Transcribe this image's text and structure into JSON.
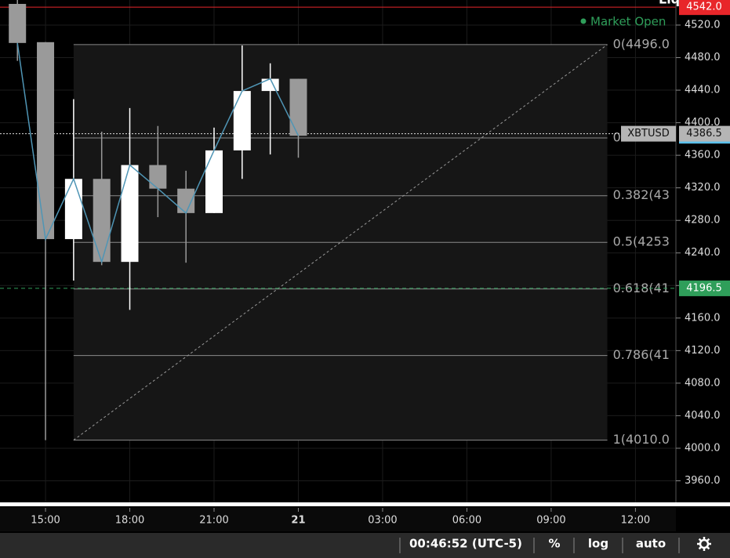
{
  "chart_data": {
    "type": "candlestick",
    "top_label": "Liq",
    "status": "Market Open",
    "x": [
      14,
      15,
      16,
      17,
      18,
      19,
      20,
      21,
      22,
      23,
      24
    ],
    "open": [
      4546,
      4499,
      4257,
      4331,
      4229,
      4348,
      4319,
      4289,
      4366,
      4439,
      4454
    ],
    "high": [
      4551,
      4499,
      4429,
      4389,
      4418,
      4396,
      4341,
      4394,
      4495,
      4473,
      4454
    ],
    "low": [
      4476,
      4010,
      4206,
      4225,
      4170,
      4284,
      4228,
      4289,
      4331,
      4361,
      4357
    ],
    "close": [
      4498,
      4257,
      4331,
      4229,
      4348,
      4319,
      4289,
      4366,
      4439,
      4454,
      4384
    ],
    "up_color": "#ffffff",
    "down_color": "#9a9a9a",
    "line_color": "#4f95b5",
    "xlim": [
      13.38,
      37.44
    ],
    "xticks": [
      {
        "value": 15,
        "label": "15:00"
      },
      {
        "value": 18,
        "label": "18:00"
      },
      {
        "value": 21,
        "label": "21:00"
      },
      {
        "value": 24,
        "label": "21"
      },
      {
        "value": 27,
        "label": "03:00"
      },
      {
        "value": 30,
        "label": "06:00"
      },
      {
        "value": 33,
        "label": "09:00"
      },
      {
        "value": 36,
        "label": "12:00"
      }
    ],
    "ylim": [
      3931.6,
      4550.8
    ],
    "yticks": [
      {
        "value": 3960,
        "label": "3960.0"
      },
      {
        "value": 4000,
        "label": "4000.0"
      },
      {
        "value": 4040,
        "label": "4040.0"
      },
      {
        "value": 4080,
        "label": "4080.0"
      },
      {
        "value": 4120,
        "label": "4120.0"
      },
      {
        "value": 4160,
        "label": "4160.0"
      },
      {
        "value": 4200,
        "label": "4200.0"
      },
      {
        "value": 4240,
        "label": "4240.0"
      },
      {
        "value": 4280,
        "label": "4280.0"
      },
      {
        "value": 4320,
        "label": "4320.0"
      },
      {
        "value": 4360,
        "label": "4360.0"
      },
      {
        "value": 4400,
        "label": "4400.0"
      },
      {
        "value": 4440,
        "label": "4440.0"
      },
      {
        "value": 4480,
        "label": "4480.0"
      },
      {
        "value": 4520,
        "label": "4520.0"
      }
    ],
    "grid": true,
    "fib_x": [
      16,
      35
    ],
    "fib_levels": [
      {
        "value": 4496,
        "label": "0(4496.0"
      },
      {
        "value": 4381.3,
        "label": "0."
      },
      {
        "value": 4310.3,
        "label": "0.382(43"
      },
      {
        "value": 4253,
        "label": "0.5(4253"
      },
      {
        "value": 4195.7,
        "label": "0.618(41"
      },
      {
        "value": 4114,
        "label": "0.786(41"
      },
      {
        "value": 4010,
        "label": "1(4010.0"
      }
    ],
    "last_price": {
      "name": "XBTUSD",
      "value": 4386.5
    },
    "price_labels": [
      {
        "value": 4542,
        "label": "4542.0",
        "color": "#e8262a"
      },
      {
        "value": 4384,
        "label": "4384.0",
        "color": "#5bc0eb"
      },
      {
        "value": 4196.5,
        "label": "4196.5",
        "color": "#2f9e5a"
      }
    ]
  },
  "toolbar": {
    "clock": "00:46:52 (UTC-5)",
    "percent": "%",
    "log": "log",
    "auto": "auto"
  }
}
